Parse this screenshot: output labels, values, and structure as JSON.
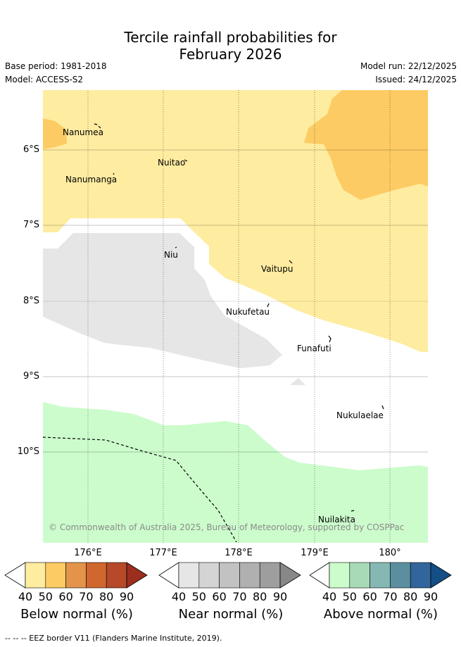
{
  "header": {
    "title_line1": "Tercile rainfall probabilities for",
    "title_line2": "February 2026",
    "base_period": "Base period: 1981-2018",
    "model": "Model: ACCESS-S2",
    "model_run": "Model run: 22/12/2025",
    "issued": "Issued: 24/12/2025"
  },
  "map": {
    "lat_labels": [
      "6°S",
      "7°S",
      "8°S",
      "9°S",
      "10°S"
    ],
    "lon_labels": [
      "176°E",
      "177°E",
      "178°E",
      "179°E",
      "180°"
    ],
    "islands": [
      "Nanumea",
      "Nuitao",
      "Nanumanga",
      "Niu",
      "Vaitupu",
      "Nukufetau",
      "Funafuti",
      "Nukulaelae",
      "Nuilakita"
    ],
    "copyright": "© Commonwealth of Australia 2025, Bureau of Meteorology, supported by COSPPac",
    "colors": {
      "below_40": "#feeca0",
      "below_50": "#fdcb63",
      "near_40": "#e6e6e6",
      "above_40": "#ccfccc"
    }
  },
  "legend": {
    "below": {
      "title": "Below normal (%)",
      "ticks": [
        "40",
        "50",
        "60",
        "70",
        "80",
        "90"
      ],
      "colors": [
        "#feeca0",
        "#fdcb63",
        "#e3944a",
        "#d0672f",
        "#b5492a",
        "#9c2e1e"
      ]
    },
    "near": {
      "title": "Near normal (%)",
      "ticks": [
        "40",
        "50",
        "60",
        "70",
        "80",
        "90"
      ],
      "colors": [
        "#e6e6e6",
        "#d4d4d4",
        "#c2c2c2",
        "#b0b0b0",
        "#9e9e9e",
        "#888888"
      ]
    },
    "above": {
      "title": "Above normal (%)",
      "ticks": [
        "40",
        "50",
        "60",
        "70",
        "80",
        "90"
      ],
      "colors": [
        "#ccfccc",
        "#a8dab8",
        "#85b8b2",
        "#5b8fa0",
        "#31659b",
        "#154d85"
      ]
    },
    "eez_note": "-- -- -- EEZ border V11 (Flanders Marine Institute, 2019)."
  }
}
